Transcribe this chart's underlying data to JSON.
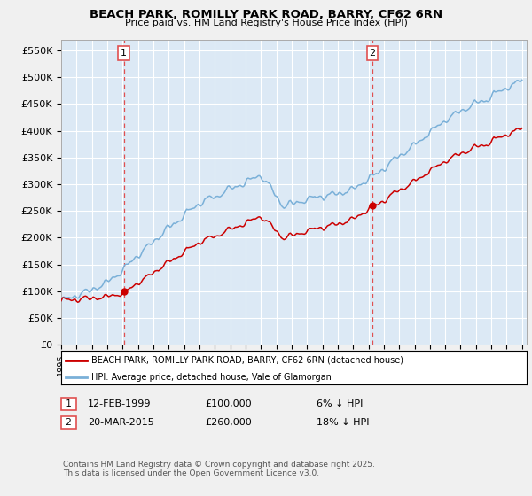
{
  "title": "BEACH PARK, ROMILLY PARK ROAD, BARRY, CF62 6RN",
  "subtitle": "Price paid vs. HM Land Registry's House Price Index (HPI)",
  "ylabel_ticks": [
    "£0",
    "£50K",
    "£100K",
    "£150K",
    "£200K",
    "£250K",
    "£300K",
    "£350K",
    "£400K",
    "£450K",
    "£500K",
    "£550K"
  ],
  "ytick_values": [
    0,
    50000,
    100000,
    150000,
    200000,
    250000,
    300000,
    350000,
    400000,
    450000,
    500000,
    550000
  ],
  "ylim": [
    0,
    570000
  ],
  "x_start_year": 1995,
  "x_end_year": 2025,
  "hpi_color": "#7ab0d8",
  "price_color": "#cc0000",
  "sale1_date_label": "12-FEB-1999",
  "sale1_price": 100000,
  "sale1_pct": "6% ↓ HPI",
  "sale1_year": 1999.12,
  "sale2_date_label": "20-MAR-2015",
  "sale2_price": 260000,
  "sale2_pct": "18% ↓ HPI",
  "sale2_year": 2015.22,
  "legend_entry1": "BEACH PARK, ROMILLY PARK ROAD, BARRY, CF62 6RN (detached house)",
  "legend_entry2": "HPI: Average price, detached house, Vale of Glamorgan",
  "footer_text": "Contains HM Land Registry data © Crown copyright and database right 2025.\nThis data is licensed under the Open Government Licence v3.0.",
  "fig_bg_color": "#f0f0f0",
  "plot_bg_color": "#dce9f5",
  "grid_color": "#ffffff",
  "vline_color": "#e05050",
  "marker_color": "#cc0000",
  "box_bg": "#ffffff"
}
